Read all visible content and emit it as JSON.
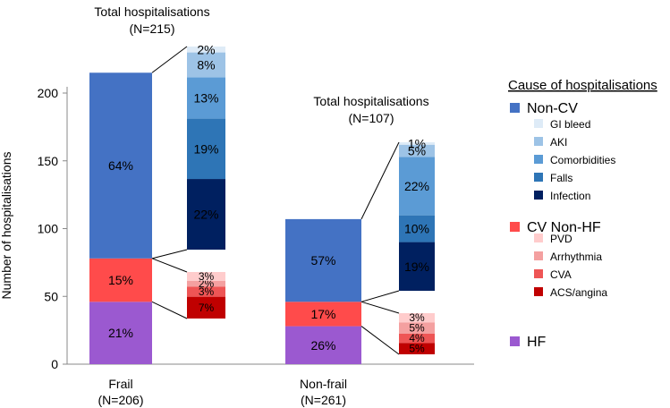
{
  "chart_data": {
    "type": "stacked-bar",
    "ylabel": "Number of hospitalisations",
    "ylim": [
      0,
      230
    ],
    "yticks": [
      0,
      50,
      100,
      150,
      200
    ],
    "groups": [
      {
        "label": "Frail",
        "n_label": "(N=206)",
        "total_title": "Total hospitalisations",
        "total_n": "(N=215)",
        "segments": [
          {
            "name": "HF",
            "value": 46,
            "pct": "21%"
          },
          {
            "name": "CV Non-HF",
            "value": 32,
            "pct": "15%"
          },
          {
            "name": "Non-CV",
            "value": 137,
            "pct": "64%"
          }
        ],
        "cv_breakdown": [
          {
            "name": "ACS/angina",
            "value": 15,
            "pct": "7%"
          },
          {
            "name": "CVA",
            "value": 7,
            "pct": "3%"
          },
          {
            "name": "Arrhythmia",
            "value": 4,
            "pct": "2%"
          },
          {
            "name": "PVD",
            "value": 6,
            "pct": "3%"
          }
        ],
        "noncv_breakdown": [
          {
            "name": "Infection",
            "value": 48,
            "pct": "22%"
          },
          {
            "name": "Falls",
            "value": 41,
            "pct": "19%"
          },
          {
            "name": "Comorbidities",
            "value": 28,
            "pct": "13%"
          },
          {
            "name": "AKI",
            "value": 17,
            "pct": "8%"
          },
          {
            "name": "GI bleed",
            "value": 4,
            "pct": "2%"
          }
        ]
      },
      {
        "label": "Non-frail",
        "n_label": "(N=261)",
        "total_title": "Total hospitalisations",
        "total_n": "(N=107)",
        "segments": [
          {
            "name": "HF",
            "value": 28,
            "pct": "26%"
          },
          {
            "name": "CV Non-HF",
            "value": 18,
            "pct": "17%"
          },
          {
            "name": "Non-CV",
            "value": 61,
            "pct": "57%"
          }
        ],
        "cv_breakdown": [
          {
            "name": "ACS/angina",
            "value": 5,
            "pct": "5%"
          },
          {
            "name": "CVA",
            "value": 4,
            "pct": "4%"
          },
          {
            "name": "Arrhythmia",
            "value": 5,
            "pct": "5%"
          },
          {
            "name": "PVD",
            "value": 4,
            "pct": "3%"
          }
        ],
        "noncv_breakdown": [
          {
            "name": "Infection",
            "value": 20,
            "pct": "19%"
          },
          {
            "name": "Falls",
            "value": 11,
            "pct": "10%"
          },
          {
            "name": "Comorbidities",
            "value": 24,
            "pct": "22%"
          },
          {
            "name": "AKI",
            "value": 5,
            "pct": "5%"
          },
          {
            "name": "GI bleed",
            "value": 1,
            "pct": "1%"
          }
        ]
      }
    ]
  },
  "legend": {
    "title": "Cause of hospitalisations",
    "categories": [
      {
        "name": "Non-CV",
        "color": "#4472C4",
        "items": [
          {
            "name": "GI bleed",
            "color": "#DEEBF7"
          },
          {
            "name": "AKI",
            "color": "#9DC3E6"
          },
          {
            "name": "Comorbidities",
            "color": "#5B9BD5"
          },
          {
            "name": "Falls",
            "color": "#2E75B6"
          },
          {
            "name": "Infection",
            "color": "#002060"
          }
        ]
      },
      {
        "name": "CV Non-HF",
        "color": "#FF4B4B",
        "items": [
          {
            "name": "PVD",
            "color": "#FFCCCC"
          },
          {
            "name": "Arrhythmia",
            "color": "#F4A0A0"
          },
          {
            "name": "CVA",
            "color": "#EE5555"
          },
          {
            "name": "ACS/angina",
            "color": "#C00000"
          }
        ]
      },
      {
        "name": "HF",
        "color": "#9B59D0",
        "items": []
      }
    ]
  },
  "colors": {
    "HF": "#9B59D0",
    "CV Non-HF": "#FF4B4B",
    "Non-CV": "#4472C4",
    "ACS/angina": "#C00000",
    "CVA": "#EE5555",
    "Arrhythmia": "#F4A0A0",
    "PVD": "#FFCCCC",
    "Infection": "#002060",
    "Falls": "#2E75B6",
    "Comorbidities": "#5B9BD5",
    "AKI": "#9DC3E6",
    "GI bleed": "#DEEBF7"
  }
}
